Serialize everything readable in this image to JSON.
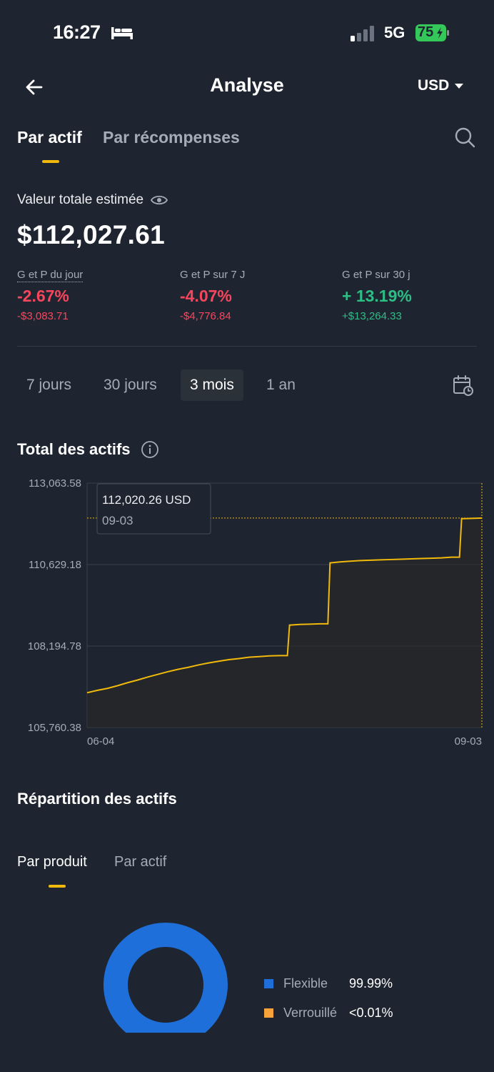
{
  "status": {
    "time": "16:27",
    "network": "5G",
    "battery": "75"
  },
  "header": {
    "title": "Analyse",
    "currency": "USD"
  },
  "tabs": {
    "by_asset": "Par actif",
    "by_rewards": "Par récompenses"
  },
  "summary": {
    "label": "Valeur totale estimée",
    "total": "$112,027.61",
    "pnl": [
      {
        "label": "G et P du jour",
        "pct": "-2.67%",
        "amount": "-$3,083.71"
      },
      {
        "label": "G et P sur 7 J",
        "pct": "-4.07%",
        "amount": "-$4,776.84"
      },
      {
        "label": "G et P sur 30 j",
        "pct": "+ 13.19%",
        "amount": "+$13,264.33"
      }
    ]
  },
  "periods": {
    "p7": "7 jours",
    "p30": "30 jours",
    "p3m": "3 mois",
    "p1y": "1 an",
    "active": "3 mois"
  },
  "chart_section": {
    "title": "Total des actifs"
  },
  "chart_data": {
    "type": "line",
    "y_ticks": [
      "113,063.58",
      "110,629.18",
      "108,194.78",
      "105,760.38"
    ],
    "ylim": [
      105760.38,
      113063.58
    ],
    "x_start_label": "06-04",
    "x_end_label": "09-03",
    "tooltip": {
      "value": "112,020.26 USD",
      "date": "09-03"
    },
    "series": [
      {
        "values": [
          106800,
          106870,
          106930,
          107010,
          107100,
          107180,
          107270,
          107350,
          107430,
          107500,
          107560,
          107630,
          107690,
          107740,
          107790,
          107820,
          107860,
          107880,
          107900,
          107910,
          108820,
          108840,
          108850,
          108860,
          110680,
          110710,
          110730,
          110750,
          110760,
          110770,
          110780,
          110790,
          110800,
          110810,
          110820,
          110830,
          110850,
          112000,
          112010,
          112020.26
        ]
      }
    ],
    "color": "#f0b90b"
  },
  "allocation": {
    "title": "Répartition des actifs",
    "tab_product": "Par produit",
    "tab_asset": "Par actif",
    "legend": [
      {
        "name": "Flexible",
        "value": "99.99%",
        "color": "#1e6fd9"
      },
      {
        "name": "Verrouillé",
        "value": "<0.01%",
        "color": "#f7a23b"
      }
    ]
  }
}
